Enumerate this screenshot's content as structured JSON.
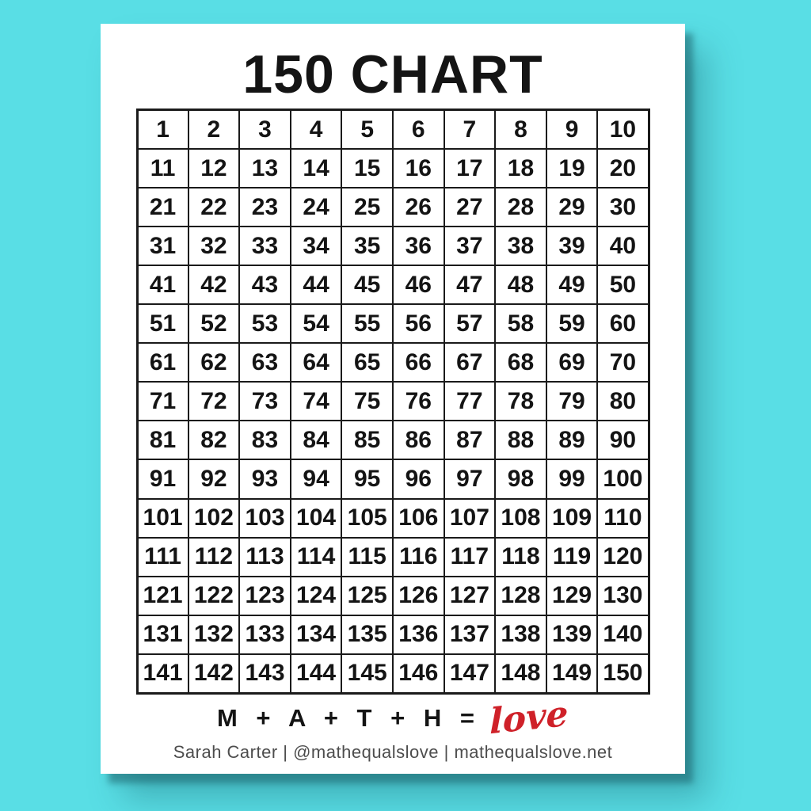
{
  "colors": {
    "background": "#59dee5",
    "paper": "#ffffff",
    "ink": "#141414",
    "grid_line": "#1a1a1a",
    "love": "#cf2129",
    "credit": "#4d4d4d"
  },
  "page": {
    "title": "150 CHART"
  },
  "grid": {
    "columns": 10,
    "rows": 15,
    "start": 1,
    "end": 150,
    "numbers": [
      1,
      2,
      3,
      4,
      5,
      6,
      7,
      8,
      9,
      10,
      11,
      12,
      13,
      14,
      15,
      16,
      17,
      18,
      19,
      20,
      21,
      22,
      23,
      24,
      25,
      26,
      27,
      28,
      29,
      30,
      31,
      32,
      33,
      34,
      35,
      36,
      37,
      38,
      39,
      40,
      41,
      42,
      43,
      44,
      45,
      46,
      47,
      48,
      49,
      50,
      51,
      52,
      53,
      54,
      55,
      56,
      57,
      58,
      59,
      60,
      61,
      62,
      63,
      64,
      65,
      66,
      67,
      68,
      69,
      70,
      71,
      72,
      73,
      74,
      75,
      76,
      77,
      78,
      79,
      80,
      81,
      82,
      83,
      84,
      85,
      86,
      87,
      88,
      89,
      90,
      91,
      92,
      93,
      94,
      95,
      96,
      97,
      98,
      99,
      100,
      101,
      102,
      103,
      104,
      105,
      106,
      107,
      108,
      109,
      110,
      111,
      112,
      113,
      114,
      115,
      116,
      117,
      118,
      119,
      120,
      121,
      122,
      123,
      124,
      125,
      126,
      127,
      128,
      129,
      130,
      131,
      132,
      133,
      134,
      135,
      136,
      137,
      138,
      139,
      140,
      141,
      142,
      143,
      144,
      145,
      146,
      147,
      148,
      149,
      150
    ]
  },
  "footer": {
    "equation_text": "M + A + T + H =",
    "love_text": "love",
    "credit": "Sarah Carter | @mathequalslove | mathequalslove.net"
  }
}
